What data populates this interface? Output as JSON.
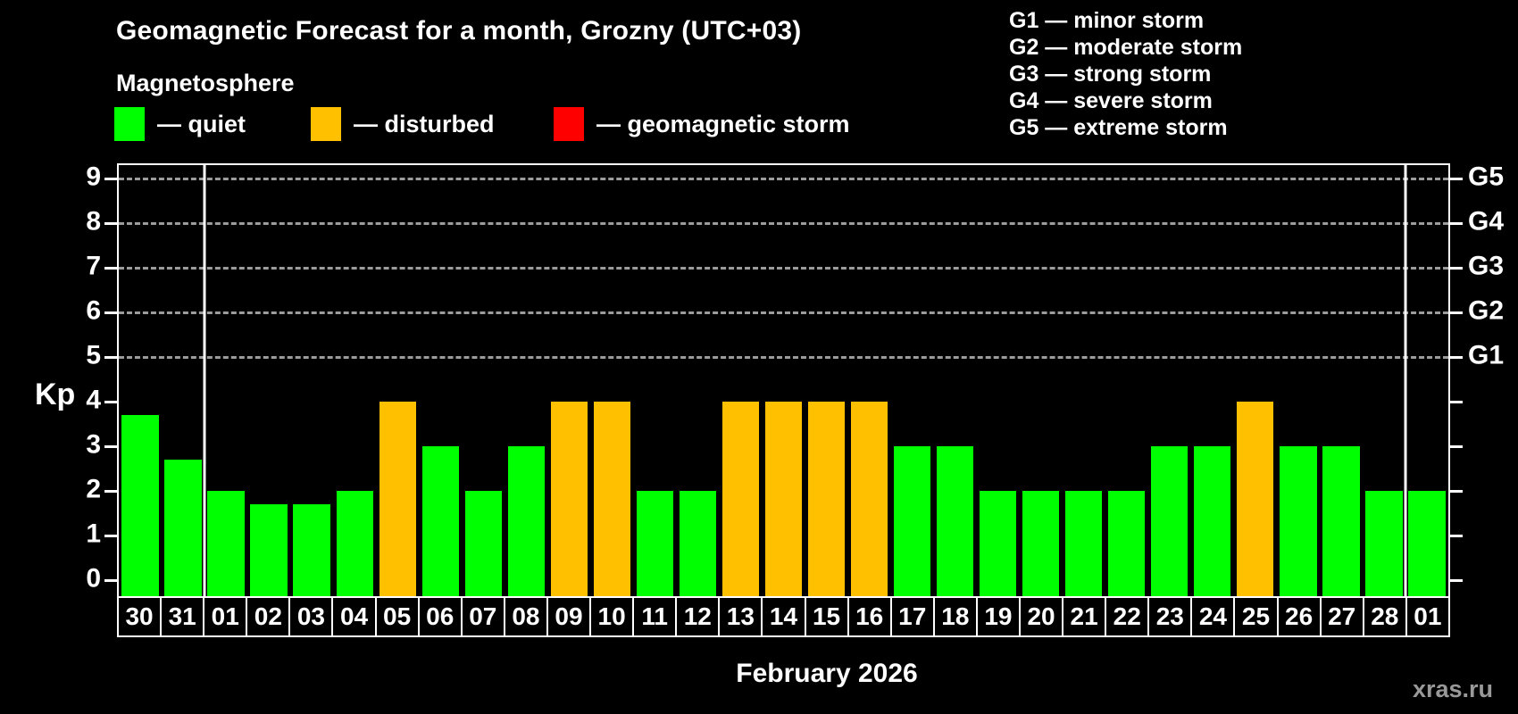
{
  "header": {
    "title": "Geomagnetic Forecast for a month, Grozny (UTC+03)",
    "subtitle": "Magnetosphere"
  },
  "legend": {
    "items": [
      {
        "label": "— quiet",
        "status": "quiet",
        "color": "#00ff00"
      },
      {
        "label": "— disturbed",
        "status": "disturbed",
        "color": "#ffc000"
      },
      {
        "label": "— geomagnetic storm",
        "status": "storm",
        "color": "#ff0000"
      }
    ]
  },
  "g_legend": {
    "lines": [
      "G1 — minor storm",
      "G2 — moderate storm",
      "G3 — strong storm",
      "G4 — severe storm",
      "G5 — extreme storm"
    ]
  },
  "y_axis": {
    "label": "Kp",
    "ticks": [
      "0",
      "1",
      "2",
      "3",
      "4",
      "5",
      "6",
      "7",
      "8",
      "9"
    ]
  },
  "right_axis": {
    "labels": [
      {
        "kp": 5,
        "label": "G1"
      },
      {
        "kp": 6,
        "label": "G2"
      },
      {
        "kp": 7,
        "label": "G3"
      },
      {
        "kp": 8,
        "label": "G4"
      },
      {
        "kp": 9,
        "label": "G5"
      }
    ]
  },
  "x_axis": {
    "label": "February 2026"
  },
  "watermark": "xras.ru",
  "colors": {
    "background": "#000000",
    "quiet": "#00ff00",
    "disturbed": "#ffc000",
    "storm": "#ff0000",
    "frame": "#ffffff",
    "gridline": "#9c9c9c",
    "watermark_text": "#999999"
  },
  "chart_data": {
    "type": "bar",
    "title": "Geomagnetic Forecast for a month, Grozny (UTC+03)",
    "xlabel": "February 2026",
    "ylabel": "Kp",
    "ylim": [
      0,
      9
    ],
    "grid": "dashed horizontal at Kp 5-9",
    "legend_position": "top-left",
    "categories": [
      "30",
      "31",
      "01",
      "02",
      "03",
      "04",
      "05",
      "06",
      "07",
      "08",
      "09",
      "10",
      "11",
      "12",
      "13",
      "14",
      "15",
      "16",
      "17",
      "18",
      "19",
      "20",
      "21",
      "22",
      "23",
      "24",
      "25",
      "26",
      "27",
      "28",
      "01"
    ],
    "values": [
      3.7,
      2.7,
      2,
      1.7,
      1.7,
      2,
      4,
      3,
      2,
      3,
      4,
      4,
      2,
      2,
      4,
      4,
      4,
      4,
      3,
      3,
      2,
      2,
      2,
      2,
      3,
      3,
      4,
      3,
      3,
      2,
      2
    ],
    "statuses": [
      "quiet",
      "quiet",
      "quiet",
      "quiet",
      "quiet",
      "quiet",
      "disturbed",
      "quiet",
      "quiet",
      "quiet",
      "disturbed",
      "disturbed",
      "quiet",
      "quiet",
      "disturbed",
      "disturbed",
      "disturbed",
      "disturbed",
      "quiet",
      "quiet",
      "quiet",
      "quiet",
      "quiet",
      "quiet",
      "quiet",
      "quiet",
      "disturbed",
      "quiet",
      "quiet",
      "quiet",
      "quiet"
    ],
    "gridline_levels": [
      5,
      6,
      7,
      8,
      9
    ],
    "month_separators_at_index": [
      2,
      30
    ]
  }
}
